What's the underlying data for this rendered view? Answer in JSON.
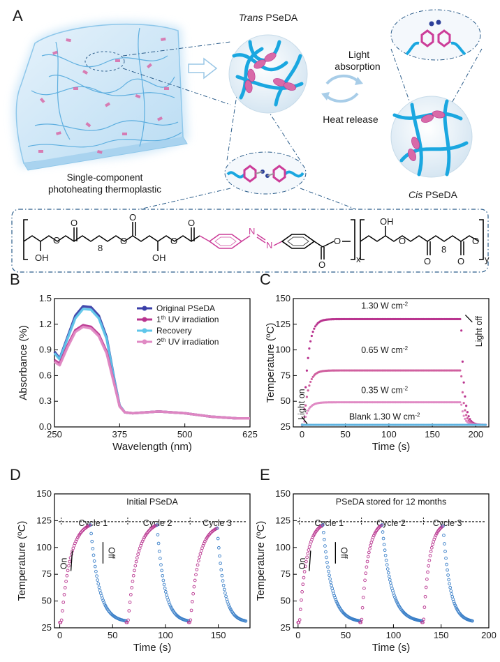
{
  "panel_letters": {
    "a": "A",
    "b": "B",
    "c": "C",
    "d": "D",
    "e": "E"
  },
  "schematic": {
    "trans_label_italic": "Trans",
    "trans_label_rest": " PSeDA",
    "cis_label_italic": "Cis",
    "cis_label_rest": " PSeDA",
    "light_line1": "Light",
    "light_line2": "absorption",
    "heat": "Heat release",
    "material_line1": "Single-component",
    "material_line2": "photoheating thermoplastic",
    "chem_sub_8a": "8",
    "chem_oh1": "OH",
    "chem_oh2": "OH",
    "chem_oh3": "OH",
    "chem_x": "x",
    "chem_sub_8b": "8",
    "chem_y": "y",
    "colors": {
      "chain": "#1aa7e0",
      "azo": "#cc3d99",
      "frame": "#2a5c8a"
    }
  },
  "chart_data": [
    {
      "panel": "B",
      "type": "line",
      "xlabel": "Wavelength (nm)",
      "ylabel": "Absorbance (%)",
      "xlim": [
        250,
        625
      ],
      "ylim": [
        0,
        1.5
      ],
      "xticks": [
        250,
        375,
        500,
        625
      ],
      "yticks": [
        0.0,
        0.3,
        0.6,
        0.9,
        1.2,
        1.5
      ],
      "legend_position": "top-right",
      "series": [
        {
          "name": "Original PSeDA",
          "color": "#3a3fa8",
          "x": [
            250,
            260,
            275,
            290,
            305,
            320,
            335,
            350,
            365,
            375,
            385,
            400,
            425,
            450,
            475,
            500,
            525,
            550,
            575,
            600,
            625
          ],
          "y": [
            0.88,
            0.8,
            1.05,
            1.3,
            1.41,
            1.4,
            1.3,
            1.05,
            0.55,
            0.25,
            0.17,
            0.16,
            0.17,
            0.18,
            0.17,
            0.16,
            0.14,
            0.12,
            0.11,
            0.1,
            0.1
          ]
        },
        {
          "name": "Recovery",
          "color": "#5fc6ea",
          "x": [
            250,
            260,
            275,
            290,
            305,
            320,
            335,
            350,
            365,
            375,
            385,
            400,
            425,
            450,
            475,
            500,
            525,
            550,
            575,
            600,
            625
          ],
          "y": [
            0.86,
            0.79,
            1.03,
            1.27,
            1.38,
            1.37,
            1.27,
            1.03,
            0.54,
            0.25,
            0.17,
            0.16,
            0.17,
            0.18,
            0.17,
            0.16,
            0.14,
            0.12,
            0.11,
            0.1,
            0.1
          ]
        },
        {
          "name": "1th UV irradiation",
          "color": "#b9348f",
          "x": [
            250,
            260,
            275,
            290,
            305,
            320,
            335,
            350,
            365,
            375,
            385,
            400,
            425,
            450,
            475,
            500,
            525,
            550,
            575,
            600,
            625
          ],
          "y": [
            0.78,
            0.74,
            0.95,
            1.13,
            1.19,
            1.17,
            1.08,
            0.88,
            0.5,
            0.24,
            0.17,
            0.16,
            0.17,
            0.18,
            0.17,
            0.16,
            0.14,
            0.12,
            0.11,
            0.1,
            0.1
          ]
        },
        {
          "name": "2th UV irradiation",
          "color": "#e08ac4",
          "x": [
            250,
            260,
            275,
            290,
            305,
            320,
            335,
            350,
            365,
            375,
            385,
            400,
            425,
            450,
            475,
            500,
            525,
            550,
            575,
            600,
            625
          ],
          "y": [
            0.76,
            0.72,
            0.93,
            1.11,
            1.17,
            1.15,
            1.06,
            0.86,
            0.49,
            0.24,
            0.17,
            0.16,
            0.17,
            0.18,
            0.17,
            0.16,
            0.14,
            0.12,
            0.11,
            0.1,
            0.1
          ]
        }
      ],
      "legend_text": {
        "s1": "Original PSeDA",
        "s2a": "1",
        "s2b": "th",
        "s2c": " UV irradiation",
        "s3": "Recovery",
        "s4a": "2",
        "s4b": "th",
        "s4c": " UV irradiation"
      }
    },
    {
      "panel": "C",
      "type": "scatter",
      "xlabel": "Time (s)",
      "ylabel_main": "Temperature (",
      "ylabel_sup": "o",
      "ylabel_end": "C)",
      "xlim": [
        -10,
        215
      ],
      "ylim": [
        25,
        150
      ],
      "xticks": [
        0,
        50,
        100,
        150,
        200
      ],
      "yticks": [
        25,
        50,
        75,
        100,
        125,
        150
      ],
      "light_off_time": 183,
      "series": [
        {
          "name": "1.30 W cm-2",
          "plateau": 130,
          "color": "#b9348f"
        },
        {
          "name": "0.65 W cm-2",
          "plateau": 80,
          "color": "#d0609f"
        },
        {
          "name": "0.35 W cm-2",
          "plateau": 49,
          "color": "#e08ac4"
        },
        {
          "name": "Blank 1.30 W cm-2",
          "plateau": 27,
          "color": "#5fb3e0"
        }
      ],
      "labels": {
        "l1": "1.30 W cm",
        "l1s": "-2",
        "l2": "0.65 W cm",
        "l2s": "-2",
        "l3": "0.35 W cm",
        "l3s": "-2",
        "l4": "Blank 1.30 W cm",
        "l4s": "-2",
        "on": "Light on",
        "off": "Light off"
      }
    },
    {
      "panel": "D",
      "type": "scatter",
      "title": "Initial PSeDA",
      "xlabel": "Time (s)",
      "ylabel_main": "Temperature (",
      "ylabel_sup": "o",
      "ylabel_end": "C)",
      "xlim": [
        -5,
        180
      ],
      "ylim": [
        25,
        150
      ],
      "xticks": [
        0,
        50,
        100,
        150
      ],
      "yticks": [
        25,
        50,
        75,
        100,
        125,
        150
      ],
      "cycles": [
        {
          "label": "Cycle 1",
          "start": 0,
          "peak_t": 29,
          "peak": 121,
          "end": 63
        },
        {
          "label": "Cycle 2",
          "start": 63,
          "peak_t": 92,
          "peak": 121,
          "end": 122
        },
        {
          "label": "Cycle 3",
          "start": 122,
          "peak_t": 149,
          "peak": 118,
          "end": 176
        }
      ],
      "dashed_level": 124,
      "on": "On",
      "off": "Off",
      "heat_color": "#b9348f",
      "cool_color": "#3a7fc8"
    },
    {
      "panel": "E",
      "type": "scatter",
      "title": "PSeDA stored for 12 months",
      "xlabel": "Time (s)",
      "ylabel_main": "Temperature (",
      "ylabel_sup": "o",
      "ylabel_end": "C)",
      "xlim": [
        -5,
        200
      ],
      "ylim": [
        25,
        150
      ],
      "xticks": [
        0,
        50,
        100,
        150,
        200
      ],
      "yticks": [
        25,
        50,
        75,
        100,
        125,
        150
      ],
      "cycles": [
        {
          "label": "Cycle 1",
          "start": 0,
          "peak_t": 26,
          "peak": 121,
          "end": 65
        },
        {
          "label": "Cycle 2",
          "start": 65,
          "peak_t": 88,
          "peak": 121,
          "end": 130
        },
        {
          "label": "Cycle 3",
          "start": 130,
          "peak_t": 152,
          "peak": 120,
          "end": 183
        }
      ],
      "dashed_level": 124,
      "on": "On",
      "off": "Off",
      "heat_color": "#b9348f",
      "cool_color": "#3a7fc8"
    }
  ]
}
